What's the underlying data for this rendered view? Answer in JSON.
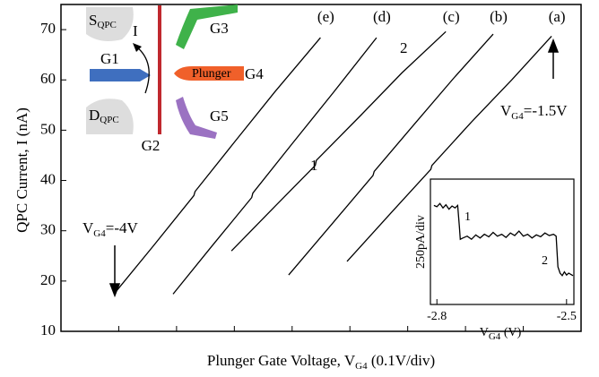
{
  "chart_data": [
    {
      "type": "line",
      "xlabel": {
        "main": "Plunger Gate Voltage, V",
        "sub": "G4",
        "rest": " (0.1V/div)"
      },
      "ylabel": "QPC Current, I (nA)",
      "xlim": [
        0,
        9
      ],
      "ylim": [
        10,
        75
      ],
      "xticks": [
        1,
        2,
        3,
        4,
        5,
        6,
        7,
        8
      ],
      "yticks": [
        10,
        20,
        30,
        40,
        50,
        60,
        70
      ],
      "series": [
        {
          "name": "(a)",
          "color": "#000000",
          "x": [
            4.95,
            5.7,
            6.4,
            6.42,
            7.1,
            7.8,
            8.49
          ],
          "values": [
            23.9,
            33.4,
            42.2,
            43.0,
            51.6,
            60.0,
            68.7
          ]
        },
        {
          "name": "(b)",
          "color": "#000000",
          "x": [
            3.94,
            4.7,
            5.4,
            5.42,
            6.1,
            6.8,
            7.48
          ],
          "values": [
            21.2,
            31.5,
            41.0,
            41.8,
            51.0,
            60.4,
            69.1
          ]
        },
        {
          "name": "(c)",
          "color": "#000000",
          "x": [
            2.95,
            3.7,
            4.4,
            4.42,
            5.2,
            5.9,
            6.66
          ],
          "values": [
            26.0,
            34.8,
            43.0,
            44.0,
            53.1,
            61.4,
            69.6
          ]
        },
        {
          "name": "(d)",
          "color": "#000000",
          "x": [
            1.94,
            2.6,
            3.3,
            3.32,
            4.0,
            4.7,
            5.46
          ],
          "values": [
            17.4,
            26.8,
            36.6,
            37.5,
            47.3,
            57.3,
            68.4
          ]
        },
        {
          "name": "(e)",
          "color": "#000000",
          "x": [
            0.93,
            1.6,
            2.3,
            2.32,
            3.0,
            3.7,
            4.49
          ],
          "values": [
            17.6,
            27.0,
            37.0,
            37.8,
            47.6,
            57.6,
            68.4
          ]
        }
      ],
      "annotations": [
        "1",
        "2",
        {
          "main": "V",
          "sub": "G4",
          "rest": "=-1.5V"
        },
        {
          "main": "V",
          "sub": "G4",
          "rest": "=-4V"
        }
      ]
    },
    {
      "type": "line",
      "xlabel": {
        "main": "V",
        "sub": "G4",
        "rest": " (V)"
      },
      "ylabel": "250pA/div",
      "xlim": [
        -2.815,
        -2.483
      ],
      "ylim": [
        0,
        1000
      ],
      "xticks": [
        -2.8,
        -2.5
      ],
      "series": [
        {
          "color": "#000000",
          "x": [
            -2.807,
            -2.8,
            -2.793,
            -2.786,
            -2.779,
            -2.772,
            -2.765,
            -2.758,
            -2.752,
            -2.748,
            -2.746,
            -2.74,
            -2.73,
            -2.72,
            -2.71,
            -2.7,
            -2.69,
            -2.68,
            -2.67,
            -2.66,
            -2.65,
            -2.64,
            -2.63,
            -2.62,
            -2.61,
            -2.6,
            -2.59,
            -2.58,
            -2.57,
            -2.56,
            -2.55,
            -2.54,
            -2.53,
            -2.524,
            -2.52,
            -2.515,
            -2.51,
            -2.505,
            -2.5,
            -2.495,
            -2.49,
            -2.485
          ],
          "values": [
            790,
            780,
            805,
            770,
            795,
            760,
            785,
            770,
            790,
            620,
            520,
            530,
            545,
            520,
            555,
            530,
            560,
            540,
            575,
            545,
            560,
            535,
            570,
            550,
            585,
            545,
            560,
            530,
            555,
            540,
            570,
            550,
            560,
            545,
            300,
            250,
            230,
            260,
            235,
            250,
            240,
            230
          ]
        }
      ],
      "annotations": [
        "1",
        "2"
      ]
    }
  ],
  "diagram": {
    "source": {
      "main": "S",
      "sub": "QPC"
    },
    "drain": {
      "main": "D",
      "sub": "QPC"
    },
    "current": "I",
    "g1": "G1",
    "g2": "G2",
    "g3": "G3",
    "g4": "G4",
    "g5": "G5",
    "plunger": "Plunger"
  }
}
